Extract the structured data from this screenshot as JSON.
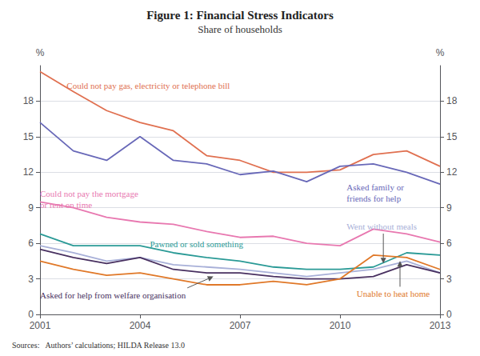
{
  "chart_data": {
    "type": "line",
    "title": "Figure 1: Financial Stress Indicators",
    "subtitle": "Share of households",
    "source": "Sources:   Authors’ calculations; HILDA Release 13.0",
    "x": [
      2001,
      2002,
      2003,
      2004,
      2005,
      2006,
      2007,
      2008,
      2009,
      2010,
      2011,
      2012,
      2013
    ],
    "series": [
      {
        "name": "Could not pay gas, electricity or telephone bill",
        "color": "#e07050",
        "values": [
          20.5,
          18.8,
          17.2,
          16.2,
          15.5,
          13.4,
          13.0,
          12.0,
          12.0,
          12.2,
          13.5,
          13.8,
          12.5
        ]
      },
      {
        "name": "Asked family or friends for help",
        "color": "#6868b8",
        "values": [
          16.2,
          13.8,
          13.0,
          15.0,
          13.0,
          12.7,
          11.8,
          12.1,
          11.2,
          12.5,
          12.7,
          12.0,
          11.0
        ]
      },
      {
        "name": "Could not pay the mortgage or rent on time",
        "color": "#e878b0",
        "values": [
          9.5,
          9.0,
          8.2,
          7.8,
          7.6,
          7.0,
          6.5,
          6.6,
          6.0,
          5.8,
          7.2,
          6.8,
          6.1
        ]
      },
      {
        "name": "Went without meals",
        "color": "#a8b0d8",
        "values": [
          5.8,
          5.2,
          4.5,
          4.8,
          4.2,
          4.0,
          3.8,
          3.5,
          3.2,
          3.5,
          3.8,
          4.5,
          3.5
        ]
      },
      {
        "name": "Pawned or sold something",
        "color": "#2a9a96",
        "values": [
          6.8,
          5.8,
          5.8,
          5.8,
          5.2,
          4.8,
          4.5,
          4.0,
          3.8,
          3.8,
          4.0,
          5.2,
          5.0
        ]
      },
      {
        "name": "Asked for help from welfare organisation",
        "color": "#483060",
        "values": [
          5.5,
          4.8,
          4.3,
          4.8,
          3.8,
          3.5,
          3.5,
          3.2,
          3.0,
          3.0,
          3.2,
          4.2,
          3.5
        ]
      },
      {
        "name": "Unable to heat home",
        "color": "#e07828",
        "values": [
          4.5,
          3.8,
          3.3,
          3.5,
          3.0,
          2.5,
          2.5,
          2.8,
          2.5,
          3.0,
          5.0,
          4.8,
          3.8
        ]
      }
    ],
    "xlim": [
      2001,
      2013
    ],
    "xticks": [
      2001,
      2004,
      2007,
      2010,
      2013
    ],
    "ylim": [
      0,
      21
    ],
    "yticks": [
      0,
      3,
      6,
      9,
      12,
      15,
      18
    ],
    "ylabel": "%",
    "y2lim": [
      0,
      21
    ],
    "y2ticks": [
      0,
      3,
      6,
      9,
      12,
      15,
      18
    ],
    "y2label": "%",
    "grid": true,
    "annotations": [
      {
        "text": "Could not pay gas, electricity or telephone bill",
        "x": 2001.8,
        "y": 19.8,
        "color": "#e07050"
      },
      {
        "text": "Could not pay the mortgage\nor rent on time",
        "x": 2001.0,
        "y": 10.7,
        "color": "#e878b0"
      },
      {
        "text": "Asked family or\nfriends for help",
        "x": 2010.2,
        "y": 11.2,
        "color": "#6868b8"
      },
      {
        "text": "Went without meals",
        "x": 2010.2,
        "y": 7.9,
        "color": "#a8b0d8",
        "arrow": [
          2011.3,
          4.3
        ]
      },
      {
        "text": "Pawned or sold something",
        "x": 2004.3,
        "y": 5.5,
        "color": "#2a9a96"
      },
      {
        "text": "Asked for help from welfare organisation",
        "x": 2001.0,
        "y": 2.1,
        "color": "#483060",
        "arrow": [
          2006.2,
          3.2
        ]
      },
      {
        "text": "Unable to heat home",
        "x": 2010.5,
        "y": 2.2,
        "color": "#e07828",
        "arrow": [
          2011.8,
          4.5
        ]
      }
    ]
  }
}
